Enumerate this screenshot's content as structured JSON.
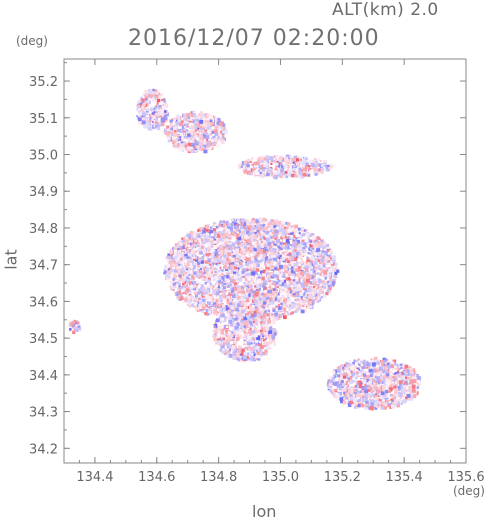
{
  "header": {
    "alt_label": "ALT(km) 2.0",
    "time_label": "2016/12/07 02:20:00"
  },
  "axes": {
    "y_unit": "(deg)",
    "x_unit": "(deg)",
    "xlabel": "lon",
    "ylabel": "lat"
  },
  "chart_data": {
    "type": "heatmap",
    "title": "2016/12/07 02:20:00",
    "xlabel": "lon",
    "ylabel": "lat",
    "xlim": [
      134.3,
      135.6
    ],
    "ylim": [
      34.16,
      35.26
    ],
    "xticks": [
      134.4,
      134.6,
      134.8,
      135.0,
      135.2,
      135.4,
      135.6
    ],
    "xtick_labels": [
      "134.4",
      "134.6",
      "134.8",
      "135.0",
      "135.2",
      "135.4",
      "135.6"
    ],
    "yticks": [
      34.2,
      34.3,
      34.4,
      34.5,
      34.6,
      34.7,
      34.8,
      34.9,
      35.0,
      35.1,
      35.2
    ],
    "ytick_labels": [
      "34.2",
      "34.3",
      "34.4",
      "34.5",
      "34.6",
      "34.7",
      "34.8",
      "34.9",
      "35.0",
      "35.1",
      "35.2"
    ],
    "grid": false,
    "colors": {
      "positive": "#f0555a",
      "negative": "#5a5af0",
      "near_zero": "#f4f0ff",
      "frame": "#888888"
    },
    "echo_regions": [
      {
        "name": "central-cluster",
        "lon": [
          134.62,
          135.18
        ],
        "lat": [
          34.55,
          34.83
        ]
      },
      {
        "name": "southern-tail",
        "lon": [
          134.78,
          134.98
        ],
        "lat": [
          34.44,
          34.6
        ]
      },
      {
        "name": "north-cluster-1",
        "lon": [
          134.53,
          134.63
        ],
        "lat": [
          35.07,
          35.18
        ]
      },
      {
        "name": "north-cluster-2",
        "lon": [
          134.62,
          134.82
        ],
        "lat": [
          35.01,
          35.12
        ]
      },
      {
        "name": "north-cluster-3",
        "lon": [
          134.86,
          135.16
        ],
        "lat": [
          34.94,
          35.0
        ]
      },
      {
        "name": "southeast-cluster",
        "lon": [
          135.15,
          135.45
        ],
        "lat": [
          34.31,
          34.45
        ]
      },
      {
        "name": "west-spot",
        "lon": [
          134.31,
          134.35
        ],
        "lat": [
          34.52,
          34.55
        ]
      }
    ]
  }
}
